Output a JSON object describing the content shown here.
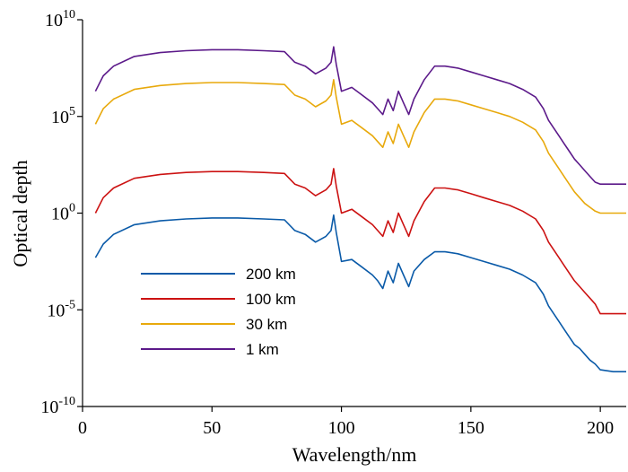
{
  "chart_data": {
    "type": "line",
    "title": "",
    "xlabel": "Wavelength/nm",
    "ylabel": "Optical depth",
    "xlim": [
      0,
      210
    ],
    "ylim_log10": [
      -10,
      10
    ],
    "yscale": "log",
    "x_ticks": [
      {
        "value": 0,
        "label": "0"
      },
      {
        "value": 50,
        "label": "50"
      },
      {
        "value": 100,
        "label": "100"
      },
      {
        "value": 150,
        "label": "150"
      },
      {
        "value": 200,
        "label": "200"
      }
    ],
    "y_ticks": [
      {
        "exp": -10,
        "base": "10",
        "sup": "-10"
      },
      {
        "exp": -5,
        "base": "10",
        "sup": "-5"
      },
      {
        "exp": 0,
        "base": "10",
        "sup": "0"
      },
      {
        "exp": 5,
        "base": "10",
        "sup": "5"
      },
      {
        "exp": 10,
        "base": "10",
        "sup": "10"
      }
    ],
    "grid": false,
    "legend_position": "bottom-left",
    "series": [
      {
        "name": "200 km",
        "color": "#0a5aa8",
        "x": [
          5,
          8,
          12,
          20,
          30,
          40,
          50,
          60,
          70,
          78,
          82,
          86,
          90,
          94,
          96,
          97,
          98,
          100,
          104,
          108,
          112,
          114,
          116,
          118,
          120,
          122,
          124,
          126,
          128,
          132,
          136,
          140,
          145,
          150,
          155,
          160,
          165,
          170,
          175,
          178,
          180,
          182,
          184,
          186,
          188,
          190,
          192,
          194,
          196,
          198,
          200,
          205,
          210
        ],
        "y_log10": [
          -2.3,
          -1.6,
          -1.1,
          -0.6,
          -0.4,
          -0.3,
          -0.25,
          -0.25,
          -0.3,
          -0.35,
          -0.9,
          -1.1,
          -1.5,
          -1.2,
          -0.9,
          -0.1,
          -1.0,
          -2.5,
          -2.4,
          -2.8,
          -3.2,
          -3.5,
          -3.9,
          -3.0,
          -3.6,
          -2.6,
          -3.2,
          -3.8,
          -3.0,
          -2.4,
          -2.0,
          -2.0,
          -2.1,
          -2.3,
          -2.5,
          -2.7,
          -2.9,
          -3.2,
          -3.6,
          -4.2,
          -4.8,
          -5.2,
          -5.6,
          -6.0,
          -6.4,
          -6.8,
          -7.0,
          -7.3,
          -7.6,
          -7.8,
          -8.1,
          -8.2,
          -8.2
        ]
      },
      {
        "name": "100 km",
        "color": "#cc1212",
        "x": [
          5,
          8,
          12,
          20,
          30,
          40,
          50,
          60,
          70,
          78,
          82,
          86,
          90,
          94,
          96,
          97,
          98,
          100,
          104,
          108,
          112,
          114,
          116,
          118,
          120,
          122,
          124,
          126,
          128,
          132,
          136,
          140,
          145,
          150,
          155,
          160,
          165,
          170,
          175,
          178,
          180,
          182,
          184,
          186,
          188,
          190,
          192,
          194,
          196,
          198,
          200,
          205,
          210
        ],
        "y_log10": [
          0.0,
          0.8,
          1.3,
          1.8,
          2.0,
          2.1,
          2.15,
          2.15,
          2.1,
          2.05,
          1.5,
          1.3,
          0.9,
          1.2,
          1.5,
          2.3,
          1.4,
          0.0,
          0.2,
          -0.2,
          -0.6,
          -0.9,
          -1.2,
          -0.4,
          -1.0,
          0.0,
          -0.6,
          -1.2,
          -0.4,
          0.6,
          1.3,
          1.3,
          1.2,
          1.0,
          0.8,
          0.6,
          0.4,
          0.1,
          -0.3,
          -0.9,
          -1.5,
          -1.9,
          -2.3,
          -2.7,
          -3.1,
          -3.5,
          -3.8,
          -4.1,
          -4.4,
          -4.7,
          -5.2,
          -5.2,
          -5.2
        ]
      },
      {
        "name": "30 km",
        "color": "#e8a90c",
        "x": [
          5,
          8,
          12,
          20,
          30,
          40,
          50,
          60,
          70,
          78,
          82,
          86,
          90,
          94,
          96,
          97,
          98,
          100,
          104,
          108,
          112,
          114,
          116,
          118,
          120,
          122,
          124,
          126,
          128,
          132,
          136,
          140,
          145,
          150,
          155,
          160,
          165,
          170,
          175,
          178,
          180,
          182,
          184,
          186,
          188,
          190,
          192,
          194,
          196,
          198,
          200,
          205,
          210
        ],
        "y_log10": [
          4.6,
          5.4,
          5.9,
          6.4,
          6.6,
          6.7,
          6.75,
          6.75,
          6.7,
          6.65,
          6.1,
          5.9,
          5.5,
          5.8,
          6.1,
          6.9,
          6.0,
          4.6,
          4.8,
          4.4,
          4.0,
          3.7,
          3.4,
          4.2,
          3.6,
          4.6,
          4.0,
          3.4,
          4.2,
          5.2,
          5.9,
          5.9,
          5.8,
          5.6,
          5.4,
          5.2,
          5.0,
          4.7,
          4.3,
          3.7,
          3.1,
          2.7,
          2.3,
          1.9,
          1.5,
          1.1,
          0.8,
          0.5,
          0.3,
          0.1,
          0.0,
          0.0,
          0.0
        ]
      },
      {
        "name": "1 km",
        "color": "#5c1a8a",
        "x": [
          5,
          8,
          12,
          20,
          30,
          40,
          50,
          60,
          70,
          78,
          82,
          86,
          90,
          94,
          96,
          97,
          98,
          100,
          104,
          108,
          112,
          114,
          116,
          118,
          120,
          122,
          124,
          126,
          128,
          132,
          136,
          140,
          145,
          150,
          155,
          160,
          165,
          170,
          175,
          178,
          180,
          182,
          184,
          186,
          188,
          190,
          192,
          194,
          196,
          198,
          200,
          205,
          210
        ],
        "y_log10": [
          6.3,
          7.1,
          7.6,
          8.1,
          8.3,
          8.4,
          8.45,
          8.45,
          8.4,
          8.35,
          7.8,
          7.6,
          7.2,
          7.5,
          7.8,
          8.6,
          7.7,
          6.3,
          6.5,
          6.1,
          5.7,
          5.4,
          5.1,
          5.9,
          5.3,
          6.3,
          5.7,
          5.1,
          5.9,
          6.9,
          7.6,
          7.6,
          7.5,
          7.3,
          7.1,
          6.9,
          6.7,
          6.4,
          6.0,
          5.4,
          4.8,
          4.4,
          4.0,
          3.6,
          3.2,
          2.8,
          2.5,
          2.2,
          1.9,
          1.6,
          1.5,
          1.5,
          1.5
        ]
      }
    ]
  }
}
